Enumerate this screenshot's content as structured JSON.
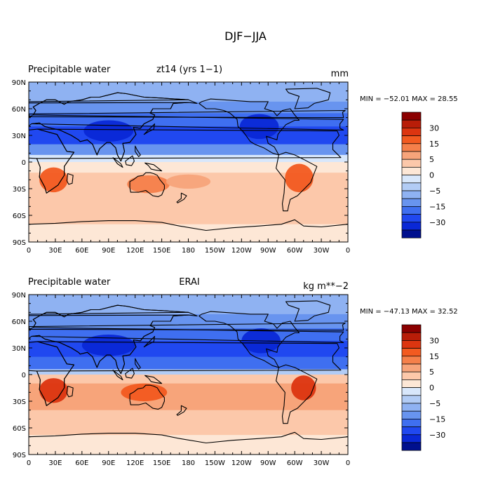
{
  "figure_title": "DJF−JJA",
  "colorbar": {
    "colors": [
      "#8b0000",
      "#b81d08",
      "#dc3510",
      "#f25a20",
      "#f5804a",
      "#f7a47a",
      "#fcc8aa",
      "#fde7d6",
      "#d8e7fb",
      "#b2ccf5",
      "#8fb2f2",
      "#6894ef",
      "#3f6ff0",
      "#2048f0",
      "#0a28d6",
      "#00108e"
    ],
    "tick_labels": [
      "30",
      "15",
      "5",
      "0",
      "−5",
      "−15",
      "−30"
    ],
    "tick_after_box": [
      2,
      4,
      6,
      8,
      10,
      12,
      14
    ]
  },
  "chart_data": [
    {
      "type": "heatmap",
      "id": "top",
      "title_left": "Precipitable water",
      "title_center": "zt14 (yrs 1−1)",
      "units": "mm",
      "min_max": "MIN = −52.01 MAX =  28.55",
      "x_ticks": [
        "0",
        "30E",
        "60E",
        "90E",
        "120E",
        "150E",
        "180",
        "150W",
        "120W",
        "90W",
        "60W",
        "30W",
        "0"
      ],
      "y_ticks": [
        "90N",
        "60N",
        "30N",
        "0",
        "30S",
        "60S",
        "90S"
      ],
      "lat_bands": [
        {
          "lat": [
            90,
            68
          ],
          "color": "#8fb2f2"
        },
        {
          "lat": [
            68,
            55
          ],
          "color": "#6894ef"
        },
        {
          "lat": [
            55,
            40
          ],
          "color": "#3f6ff0"
        },
        {
          "lat": [
            40,
            20
          ],
          "color": "#2048f0"
        },
        {
          "lat": [
            20,
            8
          ],
          "color": "#6894ef"
        },
        {
          "lat": [
            8,
            0
          ],
          "color": "#d8e7fb"
        },
        {
          "lat": [
            0,
            -12
          ],
          "color": "#fde7d6"
        },
        {
          "lat": [
            -12,
            -45
          ],
          "color": "#fcc8aa"
        },
        {
          "lat": [
            -45,
            -70
          ],
          "color": "#fcc8aa"
        },
        {
          "lat": [
            -70,
            -90
          ],
          "color": "#fde7d6"
        }
      ],
      "blobs": [
        {
          "lon": 90,
          "lat": 35,
          "rx": 28,
          "ry": 12,
          "color": "#0a28d6"
        },
        {
          "lon": 260,
          "lat": 40,
          "rx": 22,
          "ry": 14,
          "color": "#0a28d6"
        },
        {
          "lon": 28,
          "lat": -20,
          "rx": 16,
          "ry": 14,
          "color": "#f25a20"
        },
        {
          "lon": 135,
          "lat": -25,
          "rx": 24,
          "ry": 10,
          "color": "#f5804a"
        },
        {
          "lon": 180,
          "lat": -22,
          "rx": 25,
          "ry": 8,
          "color": "#f7a47a"
        },
        {
          "lon": 305,
          "lat": -18,
          "rx": 16,
          "ry": 16,
          "color": "#f25a20"
        }
      ]
    },
    {
      "type": "heatmap",
      "id": "bottom",
      "title_left": "Precipitable water",
      "title_center": "ERAI",
      "units": "kg m**−2",
      "min_max": "MIN = −47.13 MAX =  32.52",
      "x_ticks": [
        "0",
        "30E",
        "60E",
        "90E",
        "120E",
        "150E",
        "180",
        "150W",
        "120W",
        "90W",
        "60W",
        "30W",
        "0"
      ],
      "y_ticks": [
        "90N",
        "60N",
        "30N",
        "0",
        "30S",
        "60S",
        "90S"
      ],
      "lat_bands": [
        {
          "lat": [
            90,
            68
          ],
          "color": "#8fb2f2"
        },
        {
          "lat": [
            68,
            52
          ],
          "color": "#6894ef"
        },
        {
          "lat": [
            52,
            38
          ],
          "color": "#3f6ff0"
        },
        {
          "lat": [
            38,
            20
          ],
          "color": "#2048f0"
        },
        {
          "lat": [
            20,
            6
          ],
          "color": "#3f6ff0"
        },
        {
          "lat": [
            6,
            0
          ],
          "color": "#b2ccf5"
        },
        {
          "lat": [
            0,
            -10
          ],
          "color": "#fcc8aa"
        },
        {
          "lat": [
            -10,
            -40
          ],
          "color": "#f7a47a"
        },
        {
          "lat": [
            -40,
            -68
          ],
          "color": "#fcc8aa"
        },
        {
          "lat": [
            -68,
            -90
          ],
          "color": "#fde7d6"
        }
      ],
      "blobs": [
        {
          "lon": 90,
          "lat": 33,
          "rx": 30,
          "ry": 12,
          "color": "#0a28d6"
        },
        {
          "lon": 262,
          "lat": 38,
          "rx": 22,
          "ry": 14,
          "color": "#0a28d6"
        },
        {
          "lon": 28,
          "lat": -18,
          "rx": 16,
          "ry": 14,
          "color": "#dc3510"
        },
        {
          "lon": 130,
          "lat": -20,
          "rx": 26,
          "ry": 10,
          "color": "#f25a20"
        },
        {
          "lon": 310,
          "lat": -15,
          "rx": 14,
          "ry": 14,
          "color": "#dc3510"
        }
      ]
    }
  ]
}
